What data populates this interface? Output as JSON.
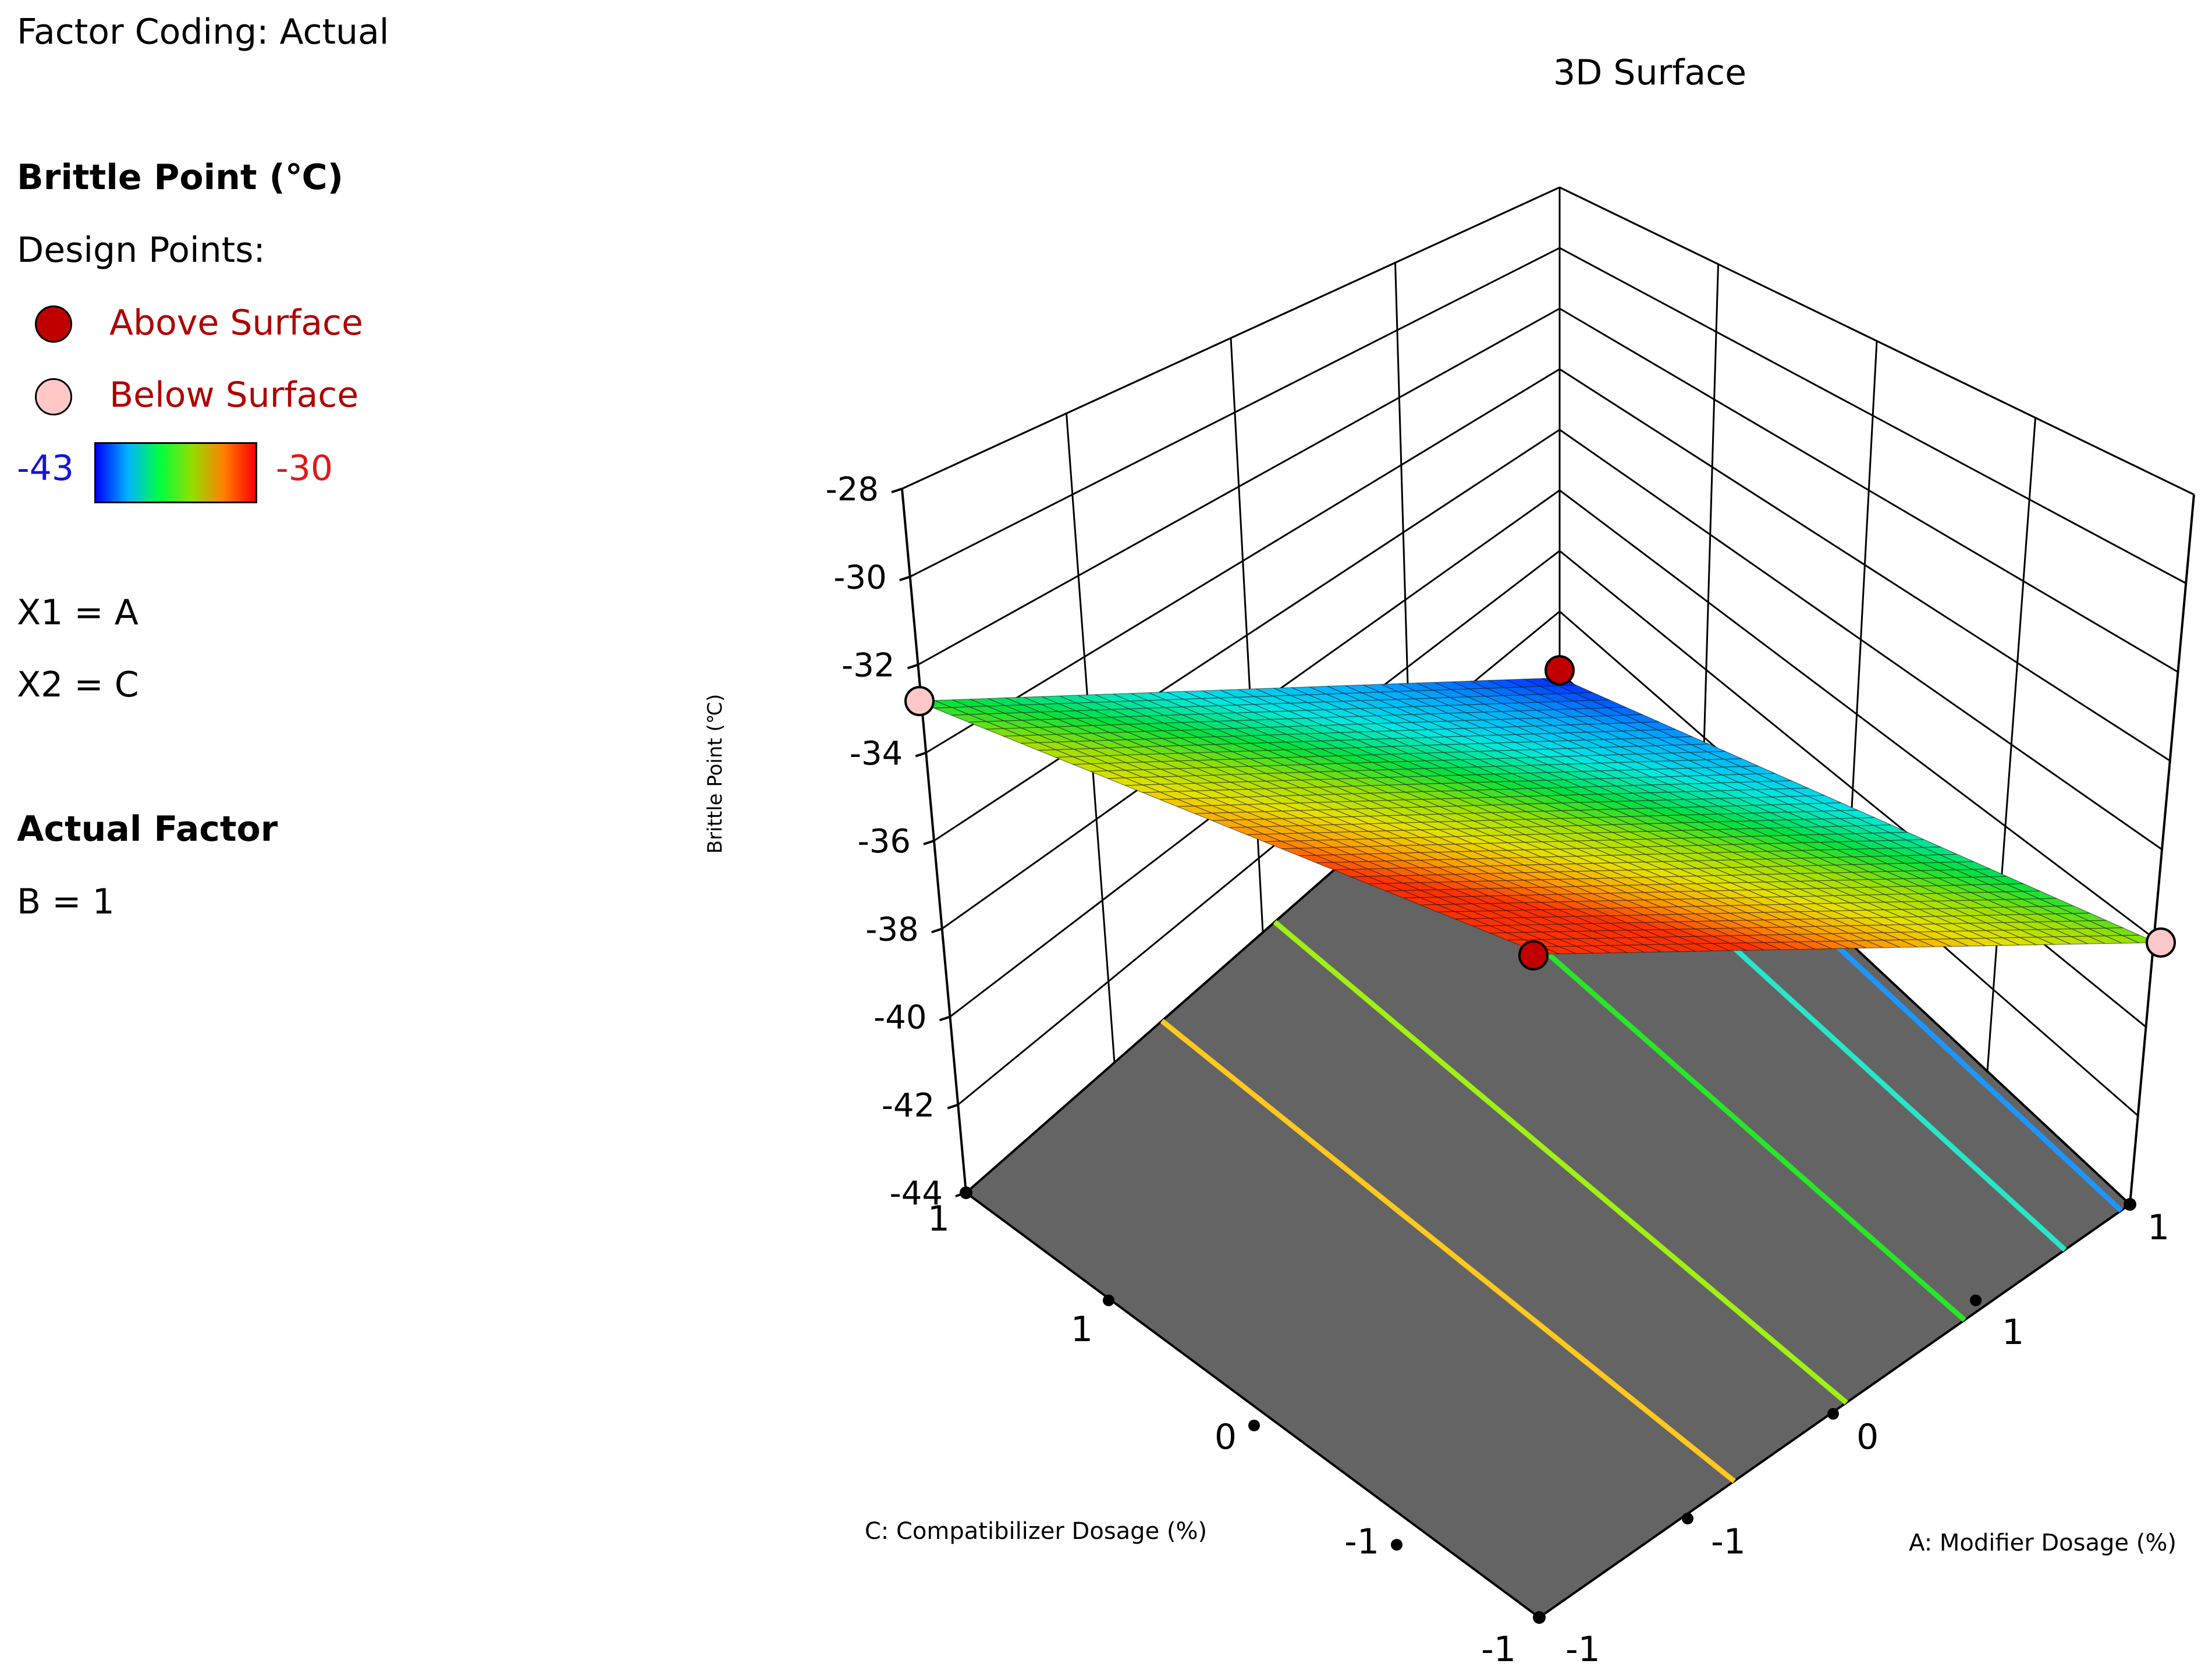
{
  "legend": {
    "factor_coding": "Factor Coding: Actual",
    "response_title": "Brittle Point (℃)",
    "design_points_label": "Design Points:",
    "above_label": "Above Surface",
    "below_label": "Below Surface",
    "colorbar_min": "-43",
    "colorbar_max": "-30",
    "x1": "X1 = A",
    "x2": "X2 = C",
    "actual_factor_title": "Actual Factor",
    "actual_factor_value": "B = 1"
  },
  "colors": {
    "above_point": "#c00000",
    "below_point": "#ffc8c8",
    "floor": "#646464",
    "colormap": [
      "#0000ff",
      "#00b4ff",
      "#00ff40",
      "#90e000",
      "#ff8000",
      "#ff0000"
    ]
  },
  "chart_data": {
    "type": "surface",
    "title": "3D Surface",
    "xlabel": "A: Modifier Dosage (%)",
    "ylabel": "C: Compatibilizer Dosage (%)",
    "zlabel": "Brittle Point (℃)",
    "zlim": [
      -44,
      -28
    ],
    "z_ticks": [
      "-28",
      "-30",
      "-32",
      "-34",
      "-36",
      "-38",
      "-40",
      "-42",
      "-44"
    ],
    "a_axis_ticks": [
      "-1",
      "-1",
      "0",
      "1",
      "1"
    ],
    "c_axis_ticks": [
      "-1",
      "-1",
      "0",
      "1",
      "1"
    ],
    "corners": [
      {
        "A": -1,
        "C": 1,
        "brittle_point": -34.9
      },
      {
        "A": -1,
        "C": -1,
        "brittle_point": -43.8
      },
      {
        "A": 1,
        "C": 1,
        "brittle_point": -36.4
      },
      {
        "A": 1,
        "C": -1,
        "brittle_point": -41.8
      }
    ],
    "design_points": [
      {
        "A": 1,
        "C": 1,
        "brittle_point": -34,
        "position": "above"
      },
      {
        "A": -1,
        "C": -1,
        "brittle_point": -42,
        "position": "above"
      },
      {
        "A": -1,
        "C": 1,
        "brittle_point": -35,
        "position": "below"
      },
      {
        "A": 1,
        "C": -1,
        "brittle_point": -42,
        "position": "below"
      }
    ],
    "contour_line_colors": [
      "#ffc81e",
      "#a0f014",
      "#28e628",
      "#28e6c8",
      "#1e96ff"
    ],
    "grid": true
  }
}
